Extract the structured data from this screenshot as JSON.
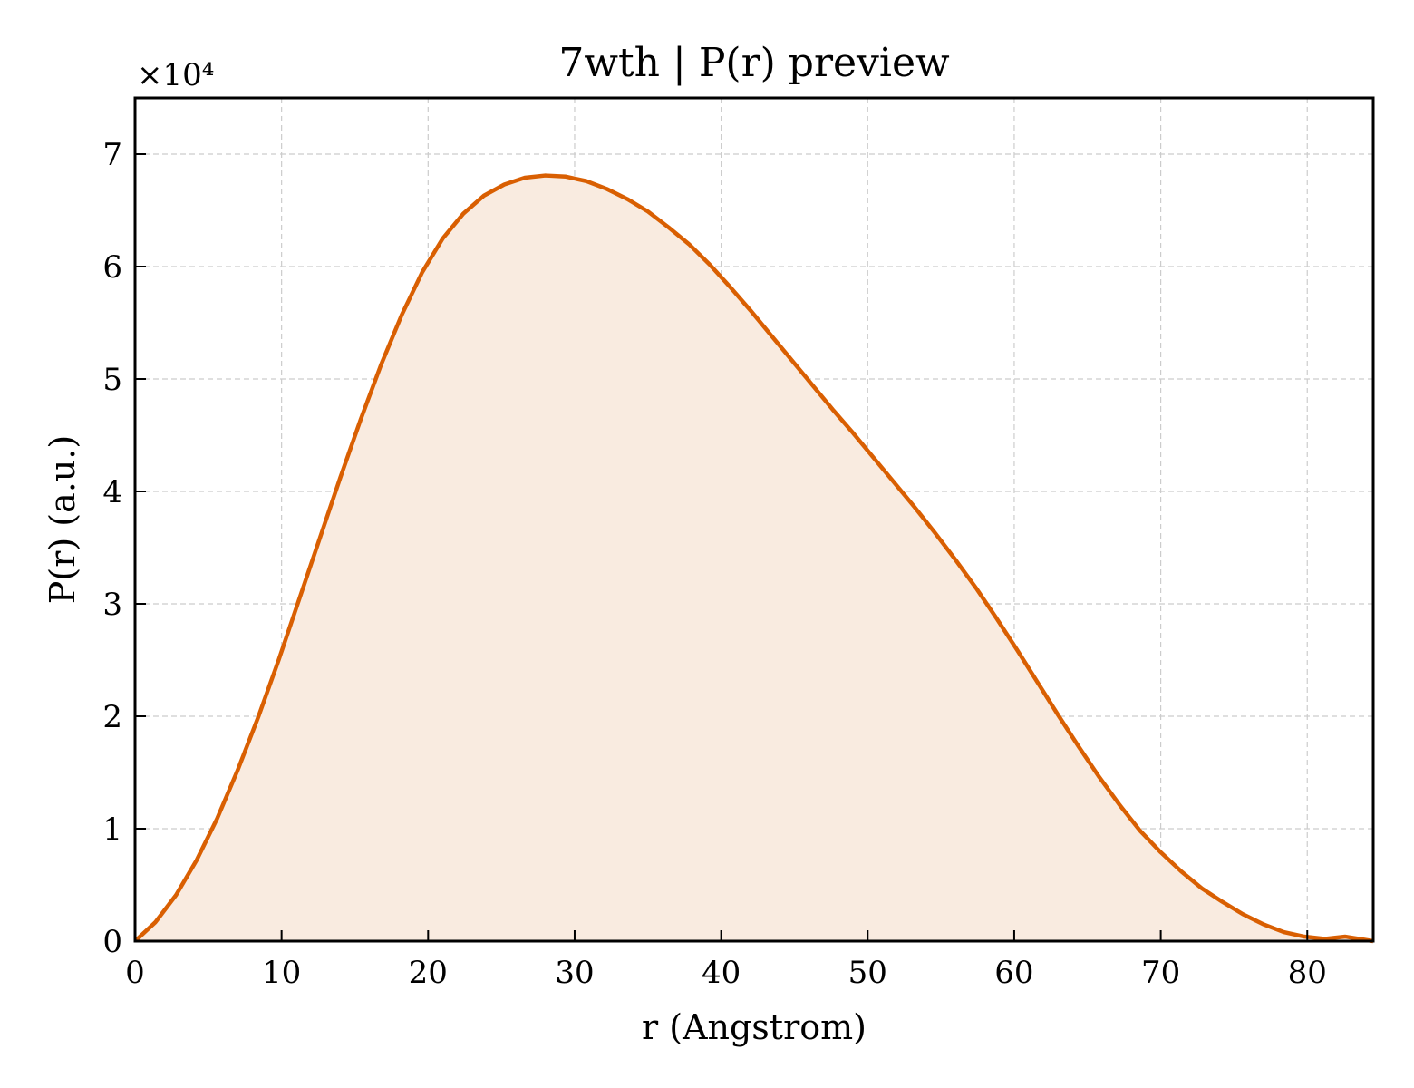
{
  "chart_data": {
    "type": "area",
    "title": "7wth | P(r) preview",
    "xlabel": "r (Angstrom)",
    "ylabel": "P(r) (a.u.)",
    "y_scale_note": "×10⁴",
    "y_multiplier": 10000,
    "xlim": [
      0,
      84.5
    ],
    "ylim": [
      0,
      75000
    ],
    "grid": true,
    "x_ticks": [
      0,
      10,
      20,
      30,
      40,
      50,
      60,
      70,
      80
    ],
    "y_ticks": [
      0,
      10000,
      20000,
      30000,
      40000,
      50000,
      60000,
      70000
    ],
    "y_tick_labels": [
      "0",
      "1",
      "2",
      "3",
      "4",
      "5",
      "6",
      "7"
    ],
    "colors": {
      "line": "#d95f02",
      "fill": "#f9ebe0"
    },
    "series": [
      {
        "x": [
          0,
          1.4,
          2.8,
          4.2,
          5.6,
          7.0,
          8.4,
          9.8,
          11.2,
          12.6,
          14.0,
          15.4,
          16.8,
          18.2,
          19.6,
          21.0,
          22.4,
          23.8,
          25.2,
          26.6,
          28.0,
          29.4,
          30.8,
          32.2,
          33.6,
          35.0,
          36.4,
          37.8,
          39.2,
          40.6,
          42.0,
          43.4,
          44.8,
          46.2,
          47.6,
          49.0,
          50.4,
          51.8,
          53.2,
          54.6,
          56.0,
          57.4,
          58.8,
          60.2,
          61.6,
          63.0,
          64.4,
          65.8,
          67.2,
          68.6,
          70.0,
          71.4,
          72.8,
          74.2,
          75.6,
          77.0,
          78.4,
          79.8,
          81.2,
          82.6,
          84.5
        ],
        "y": [
          0,
          1700,
          4100,
          7200,
          10900,
          15200,
          19900,
          25000,
          30400,
          35800,
          41200,
          46400,
          51300,
          55700,
          59500,
          62500,
          64700,
          66300,
          67300,
          67900,
          68100,
          68000,
          67600,
          66900,
          66000,
          64900,
          63500,
          62000,
          60200,
          58200,
          56100,
          53900,
          51700,
          49500,
          47300,
          45200,
          43000,
          40800,
          38600,
          36300,
          33900,
          31400,
          28700,
          25900,
          23000,
          20100,
          17300,
          14600,
          12100,
          9800,
          7900,
          6200,
          4700,
          3500,
          2400,
          1500,
          800,
          400,
          200,
          400,
          0
        ]
      }
    ]
  }
}
